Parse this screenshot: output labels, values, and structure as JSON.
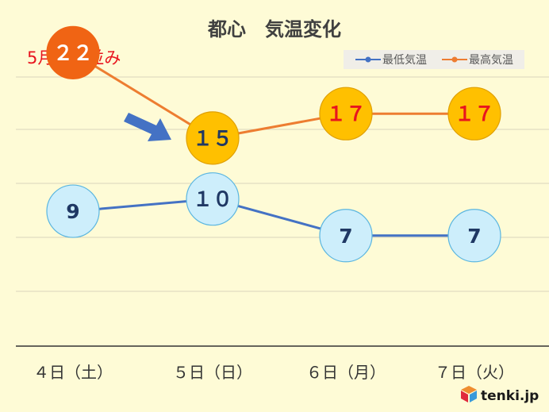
{
  "chart_data": {
    "type": "line",
    "title": "都心　気温変化",
    "annotation": "5月上旬並み",
    "categories": [
      "４日（土）",
      "５日（日）",
      "６日（月）",
      "７日（火）"
    ],
    "series": [
      {
        "name": "最低気温",
        "values": [
          9,
          10,
          7,
          7
        ],
        "labels": [
          "9",
          "１０",
          "7",
          "7"
        ],
        "line_color": "#4472c4",
        "marker_fill": "#cdeefb",
        "marker_stroke": "#5bb6e0",
        "label_color": "#1f3864"
      },
      {
        "name": "最高気温",
        "values": [
          22,
          15,
          17,
          17
        ],
        "labels": [
          "２２",
          "１５",
          "１７",
          "１７"
        ],
        "line_color": "#ed7d31",
        "marker_fill": [
          "#f06414",
          "#ffc000",
          "#ffc000",
          "#ffc000"
        ],
        "marker_stroke": [
          "#f06414",
          "#e0a000",
          "#e0a000",
          "#e0a000"
        ],
        "label_color": [
          "#ffffff",
          "#1f3864",
          "#e8141e",
          "#e8141e"
        ]
      }
    ],
    "ylim": [
      4,
      25
    ],
    "legend_position": "top-right",
    "grid": true
  },
  "brand": {
    "name": "tenki.jp"
  },
  "colors": {
    "background": "#fefbd6",
    "title": "#404040",
    "annotation": "#e8141e",
    "arrow": "#4472c4"
  }
}
